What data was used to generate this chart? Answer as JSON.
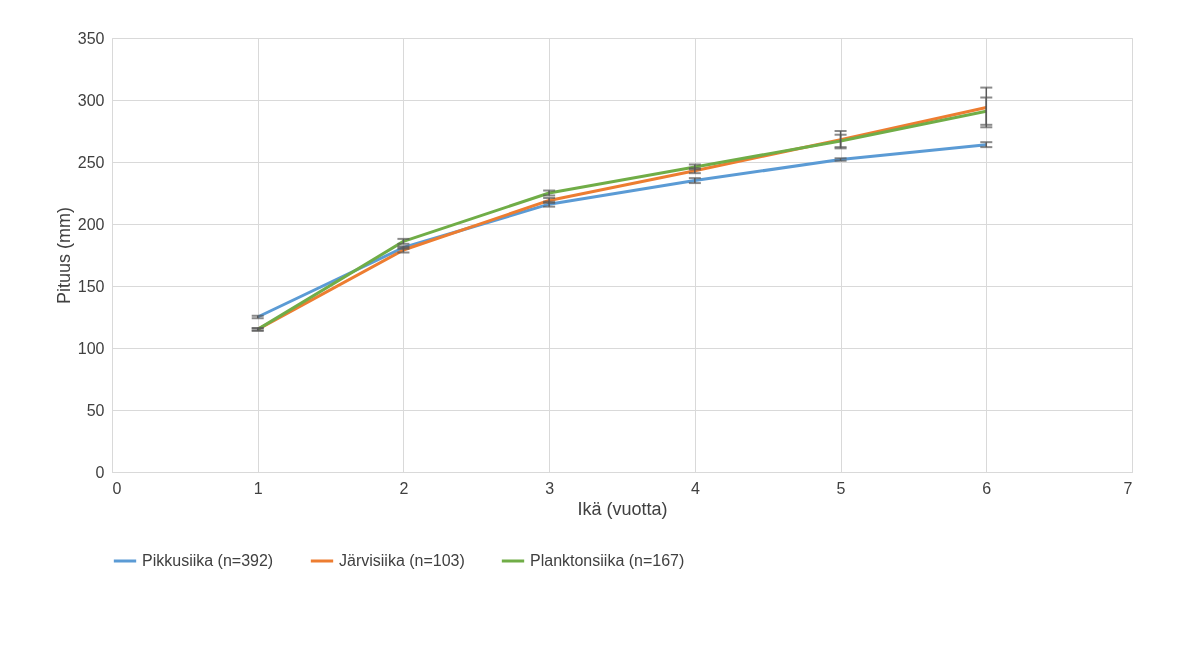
{
  "chart_data": {
    "type": "line",
    "xlabel": "Ikä (vuotta)",
    "ylabel": "Pituus (mm)",
    "x": [
      1,
      2,
      3,
      4,
      5,
      6
    ],
    "series": [
      {
        "name": "Pikkusiika (n=392)",
        "color": "#5b9bd5",
        "values": [
          125,
          181,
          216,
          235,
          252,
          264
        ],
        "errors": [
          1,
          1,
          2,
          2,
          1,
          2
        ]
      },
      {
        "name": "Järvisiika (n=103)",
        "color": "#ed7d31",
        "values": [
          115,
          179,
          219,
          243,
          268,
          294
        ],
        "errors": [
          1,
          2,
          2,
          2,
          7,
          16
        ]
      },
      {
        "name": "Planktonsiika (n=167)",
        "color": "#70ad47",
        "values": [
          115,
          186,
          225,
          246,
          267,
          291
        ],
        "errors": [
          1,
          2,
          2,
          2,
          5,
          11
        ]
      }
    ],
    "xlim": [
      0,
      7
    ],
    "xticks": [
      0,
      1,
      2,
      3,
      4,
      5,
      6,
      7
    ],
    "ylim": [
      0,
      350
    ],
    "yticks": [
      0,
      50,
      100,
      150,
      200,
      250,
      300,
      350
    ],
    "grid": true,
    "legend": "bottom",
    "marker": "none",
    "line_style": "solid"
  }
}
